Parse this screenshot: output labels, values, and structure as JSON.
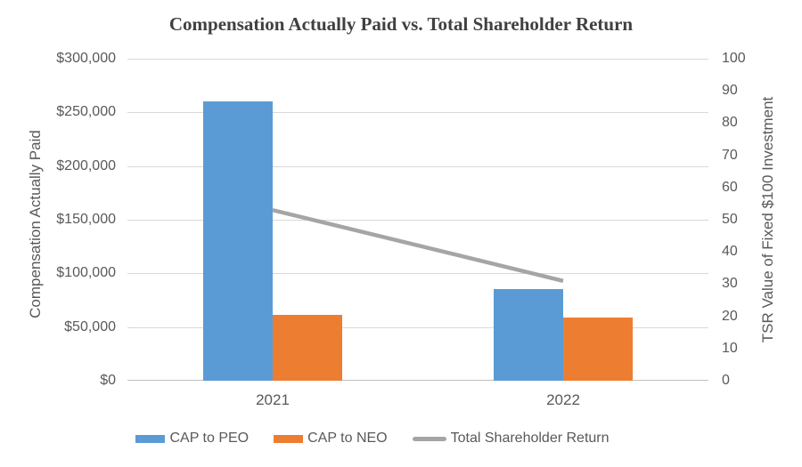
{
  "chart_data": {
    "type": "bar",
    "subtype": "bar-line-combo",
    "title": "Compensation Actually Paid vs. Total Shareholder Return",
    "categories": [
      "2021",
      "2022"
    ],
    "series": [
      {
        "name": "CAP to PEO",
        "kind": "bar",
        "axis": "left",
        "color": "#5B9BD5",
        "values": [
          260000,
          85000
        ]
      },
      {
        "name": "CAP to NEO",
        "kind": "bar",
        "axis": "left",
        "color": "#ED7D31",
        "values": [
          61000,
          59000
        ]
      },
      {
        "name": "Total Shareholder Return",
        "kind": "line",
        "axis": "right",
        "color": "#A5A5A5",
        "values": [
          53,
          31
        ]
      }
    ],
    "left_axis": {
      "label": "Compensation Actually Paid",
      "min": 0,
      "max": 300000,
      "tick_labels": [
        "$300,000",
        "$250,000",
        "$200,000",
        "$150,000",
        "$100,000",
        "$50,000",
        "$0"
      ]
    },
    "right_axis": {
      "label": "TSR Value of Fixed $100 Investment",
      "min": 0,
      "max": 100,
      "tick_labels": [
        "100",
        "90",
        "80",
        "70",
        "60",
        "50",
        "40",
        "30",
        "20",
        "10",
        "0"
      ]
    },
    "grid": true,
    "legend_position": "bottom",
    "grid_color": "#D9D9D9",
    "axis_line_color": "#BFBFBF",
    "text_color": "#595959",
    "title_color": "#404040",
    "background_color": "#FFFFFF"
  }
}
